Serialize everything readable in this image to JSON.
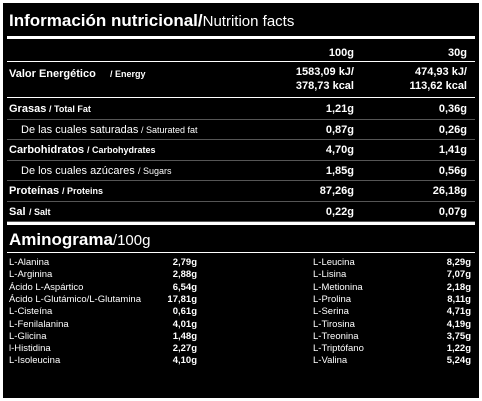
{
  "header": {
    "title": "Información nutricional/",
    "subtitle": "Nutrition facts"
  },
  "nutrition": {
    "columns": [
      "100g",
      "30g"
    ],
    "energy": {
      "name": "Valor Energético",
      "name_en": "/ Energy",
      "values": [
        [
          "1583,09 kJ/",
          "378,73 kcal"
        ],
        [
          "474,93 kJ/",
          "113,62 kcal"
        ]
      ]
    },
    "nutrients": [
      {
        "name": "Grasas",
        "name_en": "/ Total Fat",
        "values": [
          "1,21g",
          "0,36g"
        ],
        "detail": {
          "name": "De las cuales saturadas",
          "name_en": "/ Saturated fat",
          "values": [
            "0,87g",
            "0,26g"
          ]
        }
      },
      {
        "name": "Carbohidratos",
        "name_en": "/ Carbohydrates",
        "values": [
          "4,70g",
          "1,41g"
        ],
        "detail": {
          "name": "De los cuales azúcares",
          "name_en": "/ Sugars",
          "values": [
            "1,85g",
            "0,56g"
          ]
        }
      },
      {
        "name": "Proteínas",
        "name_en": "/ Proteins",
        "values": [
          "87,26g",
          "26,18g"
        ]
      },
      {
        "name": "Sal",
        "name_en": "/ Salt",
        "values": [
          "0,22g",
          "0,07g"
        ]
      }
    ]
  },
  "aminogram": {
    "title": "Aminograma",
    "unit": "/100g",
    "columns": [
      [
        [
          "L-Alanina",
          "2,79g"
        ],
        [
          "L-Arginina",
          "2,88g"
        ],
        [
          "Ácido L-Aspártico",
          "6,54g"
        ],
        [
          "Ácido L-Glutámico/L-Glutamina",
          "17,81g"
        ],
        [
          "L-Cisteína",
          "0,61g"
        ],
        [
          "L-Fenilalanina",
          "4,01g"
        ],
        [
          "L-Glicina",
          "1,48g"
        ],
        [
          "l-Histidina",
          "2,27g"
        ],
        [
          "L-Isoleucina",
          "4,10g"
        ]
      ],
      [
        [
          "L-Leucina",
          "8,29g"
        ],
        [
          "L-Lisina",
          "7,07g"
        ],
        [
          "L-Metionina",
          "2,18g"
        ],
        [
          "L-Prolina",
          "8,11g"
        ],
        [
          "L-Serina",
          "4,71g"
        ],
        [
          "L-Tirosina",
          "4,19g"
        ],
        [
          "L-Treonina",
          "3,75g"
        ],
        [
          "L-Triptófano",
          "1,22g"
        ],
        [
          "L-Valina",
          "5,24g"
        ]
      ]
    ]
  }
}
